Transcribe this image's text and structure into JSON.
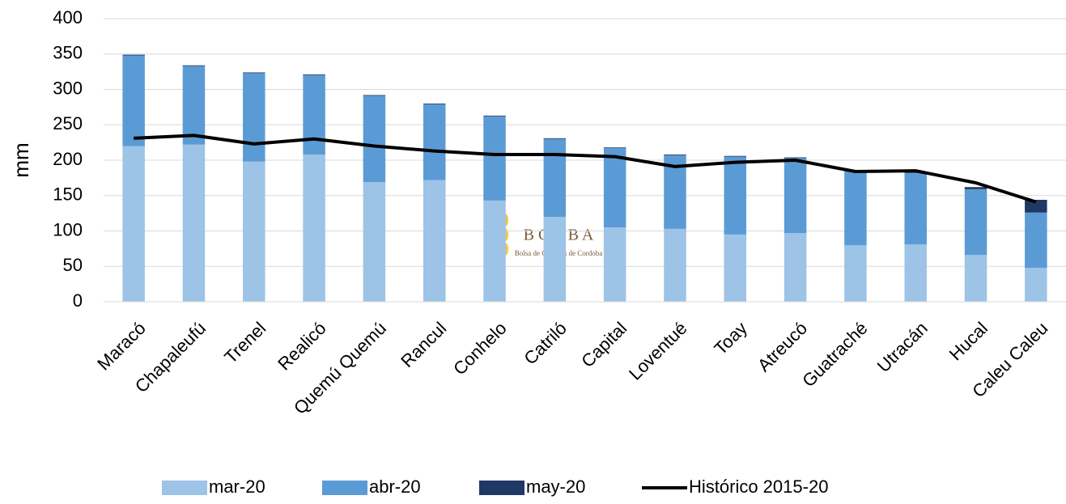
{
  "chart_data": {
    "type": "stacked-bar-line",
    "ylabel": "mm",
    "categories": [
      "Maracó",
      "Chapaleufú",
      "Trenel",
      "Realicó",
      "Quemú Quemú",
      "Rancul",
      "Conhelo",
      "Catriló",
      "Capital",
      "Loventué",
      "Toay",
      "Atreucó",
      "Guatraché",
      "Utracán",
      "Hucal",
      "Caleu Caleu"
    ],
    "series": [
      {
        "name": "mar-20",
        "color": "#9dc3e6",
        "values": [
          220,
          222,
          198,
          208,
          169,
          172,
          143,
          120,
          105,
          103,
          95,
          97,
          80,
          81,
          66,
          48
        ]
      },
      {
        "name": "abr-20",
        "color": "#5b9bd5",
        "values": [
          128,
          111,
          125,
          112,
          122,
          107,
          119,
          110,
          112,
          104,
          110,
          106,
          105,
          101,
          93,
          78
        ]
      },
      {
        "name": "may-20",
        "color": "#203864",
        "values": [
          1,
          1,
          1,
          1,
          1,
          1,
          1,
          1,
          1,
          1,
          1,
          1,
          0,
          1,
          3,
          18
        ]
      },
      {
        "name": "Histórico 2015-20",
        "type": "line",
        "color": "#000000",
        "values": [
          231,
          235,
          223,
          230,
          220,
          213,
          208,
          208,
          205,
          191,
          197,
          200,
          184,
          185,
          168,
          141
        ]
      }
    ],
    "ylim": [
      0,
      400
    ],
    "yticks": [
      0,
      50,
      100,
      150,
      200,
      250,
      300,
      350,
      400
    ],
    "grid": true,
    "legend": "bottom",
    "watermark": {
      "title": "B C C B A",
      "subtitle": "Bolsa de Cereales de Cordoba"
    }
  }
}
